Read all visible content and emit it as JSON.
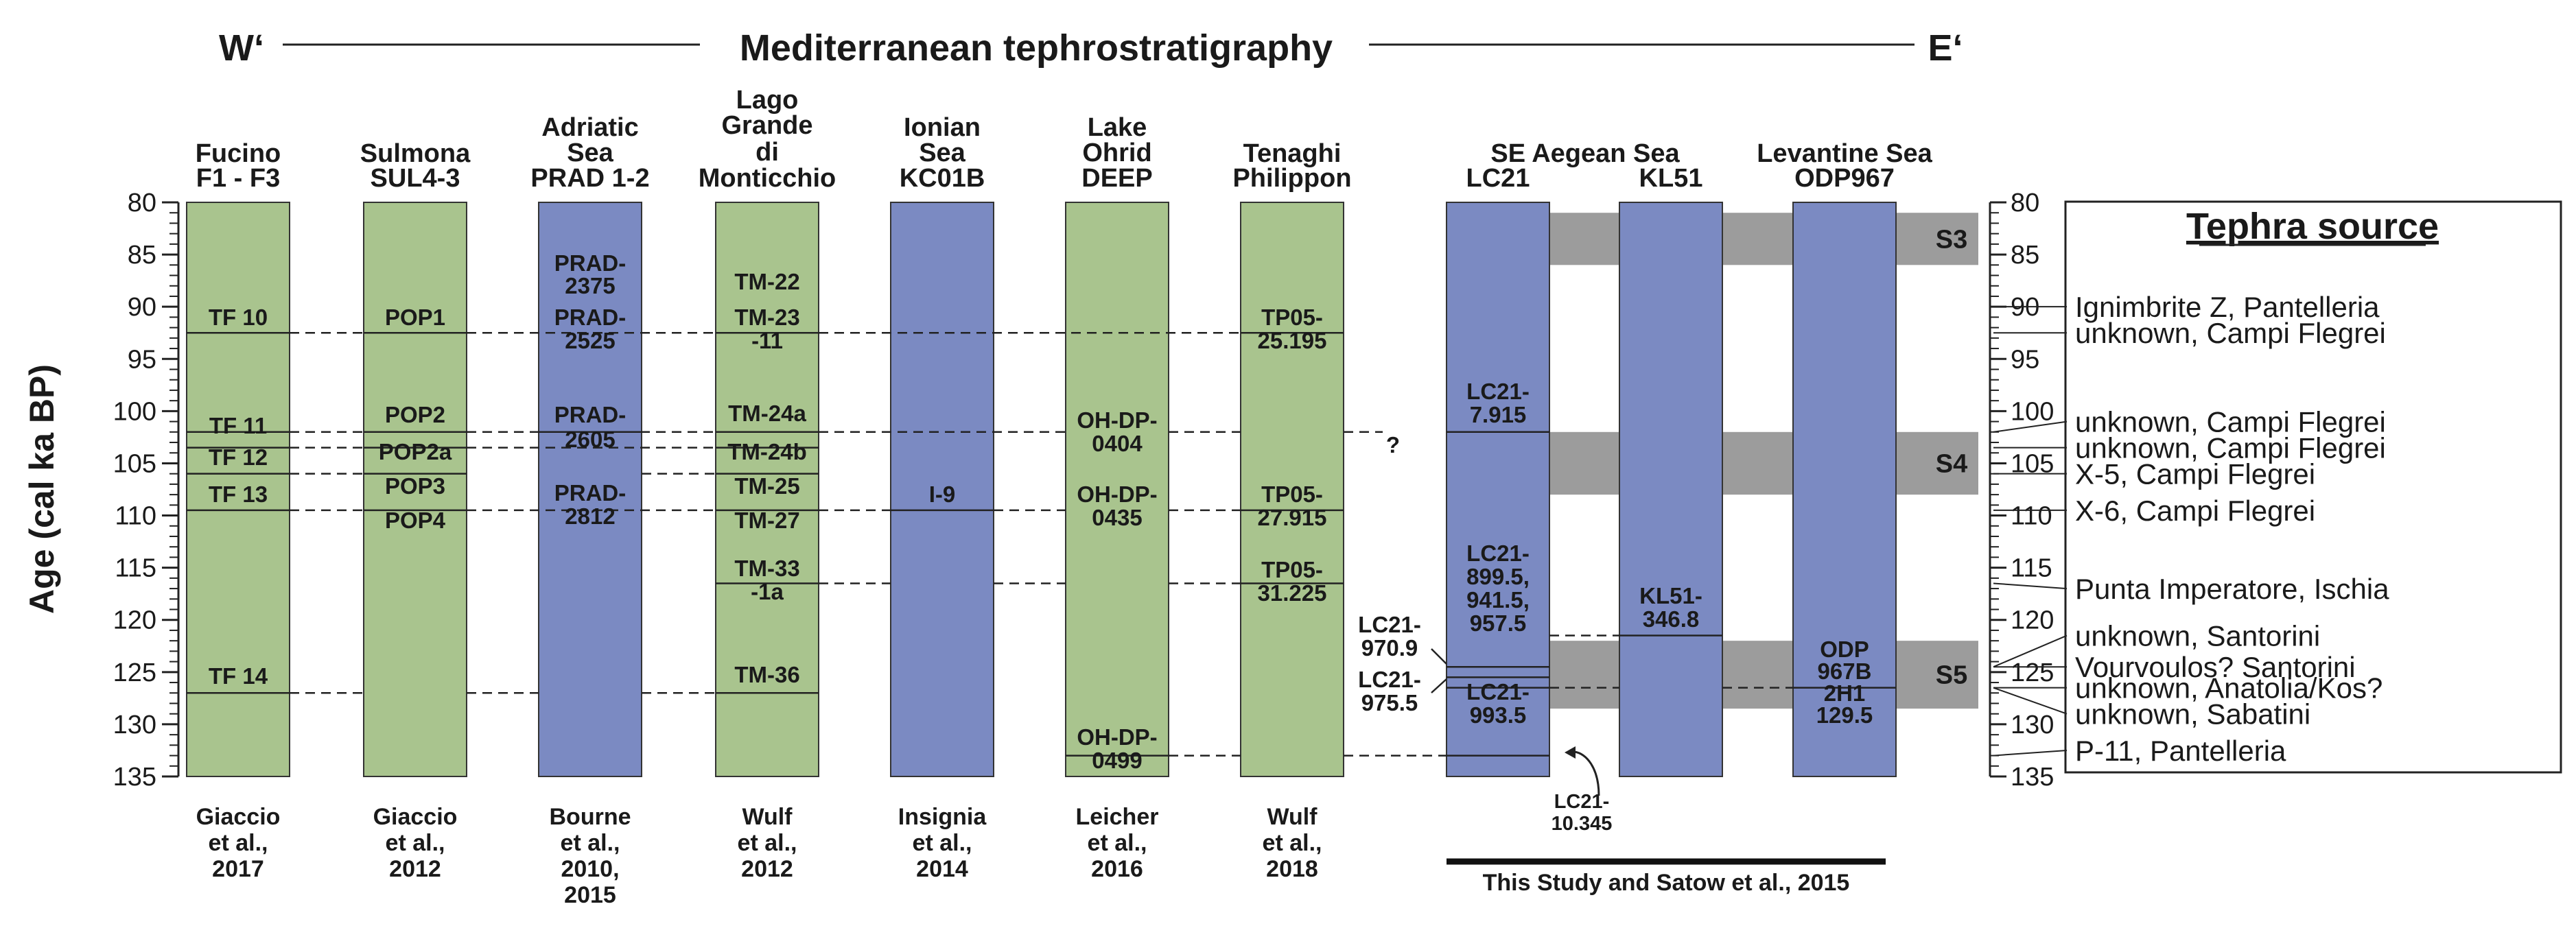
{
  "title": {
    "left": "W‘",
    "center": "Mediterranean tephrostratigraphy",
    "right": "E‘"
  },
  "axis": {
    "label": "Age (cal ka BP)",
    "min": 80,
    "max": 135,
    "major_step": 5,
    "minor_step": 1,
    "ticks": [
      "80",
      "85",
      "90",
      "95",
      "100",
      "105",
      "110",
      "115",
      "120",
      "125",
      "130",
      "135"
    ]
  },
  "colors": {
    "marine": "#7b8ac2",
    "lacustrine": "#a9c48e",
    "stage": "#9c9c9c",
    "line": "#222222"
  },
  "columns": [
    {
      "id": "fucino",
      "type": "lacustrine",
      "header": [
        "Fucino",
        "F1 - F3"
      ],
      "reference": [
        "Giaccio",
        "et al.,",
        "2017"
      ]
    },
    {
      "id": "sulmona",
      "type": "lacustrine",
      "header": [
        "Sulmona",
        "SUL4-3"
      ],
      "reference": [
        "Giaccio",
        "et al.,",
        "2012"
      ]
    },
    {
      "id": "adriatic",
      "type": "marine",
      "header": [
        "Adriatic",
        "Sea",
        "PRAD 1-2"
      ],
      "reference": [
        "Bourne",
        "et al.,",
        "2010,",
        "2015"
      ]
    },
    {
      "id": "monticchio",
      "type": "lacustrine",
      "header": [
        "Lago",
        "Grande",
        "di",
        "Monticchio"
      ],
      "reference": [
        "Wulf",
        "et al.,",
        "2012"
      ]
    },
    {
      "id": "ionian",
      "type": "marine",
      "header": [
        "Ionian",
        "Sea",
        "KC01B"
      ],
      "reference": [
        "Insignia",
        "et al.,",
        "2014"
      ]
    },
    {
      "id": "ohrid",
      "type": "lacustrine",
      "header": [
        "Lake",
        "Ohrid",
        "DEEP"
      ],
      "reference": [
        "Leicher",
        "et al.,",
        "2016"
      ]
    },
    {
      "id": "tenaghi",
      "type": "lacustrine",
      "header": [
        "Tenaghi",
        "Philippon"
      ],
      "reference": [
        "Wulf",
        "et al.,",
        "2018"
      ]
    },
    {
      "id": "lc21",
      "type": "marine",
      "header": [
        "LC21"
      ],
      "reference": []
    },
    {
      "id": "kl51",
      "type": "marine",
      "header": [
        "KL51"
      ],
      "reference": []
    },
    {
      "id": "odp967",
      "type": "marine",
      "header": [
        "ODP967"
      ],
      "reference": []
    }
  ],
  "group_headers": [
    {
      "id": "se-aegean",
      "label": "SE Aegean Sea"
    },
    {
      "id": "levantine",
      "label": "Levantine Sea"
    }
  ],
  "study_reference": "This Study and Satow et al., 2015",
  "stages": [
    {
      "label": "S3",
      "from": 81,
      "to": 86
    },
    {
      "label": "S4",
      "from": 102,
      "to": 108
    },
    {
      "label": "S5",
      "from": 122,
      "to": 128.5
    }
  ],
  "tephra_labels": {
    "fucino": [
      "TF 10",
      "TF 11",
      "TF 12",
      "TF 13",
      "TF 14"
    ],
    "sulmona": [
      "POP1",
      "POP2",
      "POP2a",
      "POP3",
      "POP4"
    ],
    "adriatic": [
      [
        "PRAD-",
        "2375"
      ],
      [
        "PRAD-",
        "2525"
      ],
      [
        "PRAD-",
        "2605"
      ],
      [
        "PRAD-",
        "2812"
      ]
    ],
    "monticchio": [
      "TM-22",
      [
        "TM-23",
        "-11"
      ],
      "TM-24a",
      "TM-24b",
      "TM-25",
      "TM-27",
      [
        "TM-33",
        "-1a"
      ],
      "TM-36"
    ],
    "ionian": [
      "I-9"
    ],
    "ohrid": [
      [
        "OH-DP-",
        "0404"
      ],
      [
        "OH-DP-",
        "0435"
      ],
      [
        "OH-DP-",
        "0499"
      ]
    ],
    "tenaghi": [
      [
        "TP05-",
        "25.195"
      ],
      [
        "TP05-",
        "27.915"
      ],
      [
        "TP05-",
        "31.225"
      ]
    ],
    "lc21": [
      [
        "LC21-",
        "7.915"
      ],
      [
        "LC21-",
        "899.5,",
        "941.5,",
        "957.5"
      ],
      [
        "LC21-",
        "993.5"
      ]
    ],
    "lc21_outside": [
      [
        "LC21-",
        "970.9"
      ],
      [
        "LC21-",
        "975.5"
      ],
      [
        "LC21-",
        "10.345"
      ]
    ],
    "kl51": [
      [
        "KL51-",
        "346.8"
      ]
    ],
    "odp967": [
      [
        "ODP",
        "967B",
        "2H1",
        "129.5"
      ]
    ],
    "unknown_marker": "?"
  },
  "correlation_ages": [
    92.5,
    102,
    103.5,
    106,
    109.5,
    116.5,
    121.5,
    124.5,
    125.5,
    126.5,
    127,
    133
  ],
  "legend": {
    "title": "Tephra source",
    "items": [
      "Ignimbrite Z, Pantelleria",
      "unknown, Campi Flegrei",
      "unknown, Campi Flegrei",
      "unknown, Campi Flegrei",
      "X-5, Campi Flegrei",
      "X-6, Campi Flegrei",
      "Punta Imperatore, Ischia",
      "unknown, Santorini",
      "Vourvoulos? Santorini",
      "unknown, Anatolia/Kos?",
      "unknown, Sabatini",
      "P-11, Pantelleria"
    ]
  }
}
